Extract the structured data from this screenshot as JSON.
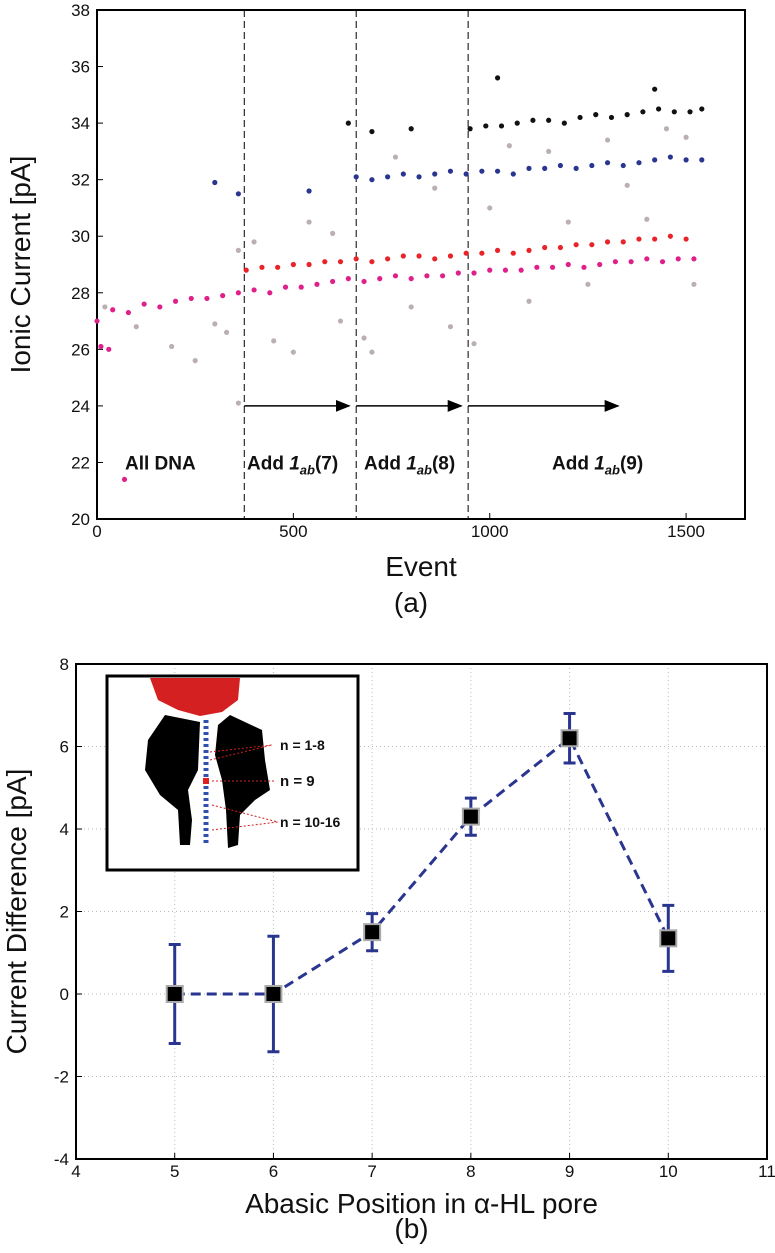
{
  "chart_data": [
    {
      "type": "scatter",
      "panel_label": "(a)",
      "x_label": "Event",
      "y_label": "Ionic Current [pA]",
      "xlim": [
        0,
        1650
      ],
      "xticks": [
        0,
        500,
        1000,
        1500
      ],
      "ylim": [
        20,
        38
      ],
      "yticks": [
        20,
        22,
        24,
        26,
        28,
        30,
        32,
        34,
        36,
        38
      ],
      "event_boundaries": [
        375,
        660,
        945
      ],
      "annotations": [
        {
          "text": "All DNA"
        },
        {
          "prefix": "Add ",
          "compound": "1",
          "subscript": "ab",
          "suffix": "(7)"
        },
        {
          "prefix": "Add ",
          "compound": "1",
          "subscript": "ab",
          "suffix": "(8)"
        },
        {
          "prefix": "Add ",
          "compound": "1",
          "subscript": "ab",
          "suffix": "(9)"
        }
      ],
      "series": [
        {
          "color": "#bbb0b0",
          "x": [
            20,
            100,
            190,
            250,
            300,
            330,
            360,
            360,
            400,
            450,
            500,
            540,
            600,
            620,
            680,
            700,
            760,
            800,
            860,
            900,
            960,
            1000,
            1050,
            1100,
            1150,
            1200,
            1250,
            1300,
            1350,
            1400,
            1450,
            1500,
            1520
          ],
          "values": [
            27.5,
            26.8,
            26.1,
            25.6,
            26.9,
            26.6,
            29.5,
            24.1,
            29.8,
            26.3,
            25.9,
            30.5,
            30.1,
            27.0,
            26.4,
            25.9,
            32.8,
            27.5,
            31.7,
            26.8,
            26.2,
            31.0,
            33.2,
            27.7,
            33.0,
            30.5,
            28.3,
            33.4,
            31.8,
            30.6,
            33.8,
            33.5,
            28.3
          ]
        },
        {
          "color": "#e0208a",
          "x": [
            0,
            40,
            80,
            120,
            160,
            200,
            240,
            280,
            320,
            360,
            400,
            440,
            480,
            520,
            560,
            600,
            640,
            680,
            720,
            760,
            800,
            840,
            880,
            920,
            960,
            1000,
            1040,
            1080,
            1120,
            1160,
            1200,
            1240,
            1280,
            1320,
            1360,
            1400,
            1440,
            1480,
            1520,
            70,
            10,
            30
          ],
          "values": [
            27.0,
            27.4,
            27.3,
            27.6,
            27.5,
            27.7,
            27.8,
            27.8,
            27.9,
            28.0,
            28.1,
            28.0,
            28.2,
            28.2,
            28.3,
            28.4,
            28.5,
            28.4,
            28.5,
            28.6,
            28.5,
            28.6,
            28.6,
            28.7,
            28.7,
            28.8,
            28.8,
            28.8,
            28.9,
            28.9,
            29.0,
            28.9,
            29.0,
            29.1,
            29.1,
            29.2,
            29.1,
            29.2,
            29.2,
            21.4,
            26.1,
            26.0
          ]
        },
        {
          "color": "#e8242a",
          "x": [
            380,
            420,
            460,
            500,
            540,
            580,
            620,
            660,
            700,
            740,
            780,
            820,
            860,
            900,
            940,
            980,
            1020,
            1060,
            1100,
            1140,
            1180,
            1220,
            1260,
            1300,
            1340,
            1380,
            1420,
            1460,
            1500
          ],
          "values": [
            28.8,
            28.9,
            28.9,
            29.0,
            29.0,
            29.1,
            29.1,
            29.2,
            29.1,
            29.2,
            29.3,
            29.3,
            29.2,
            29.3,
            29.4,
            29.4,
            29.5,
            29.4,
            29.5,
            29.6,
            29.6,
            29.7,
            29.7,
            29.8,
            29.8,
            29.9,
            29.9,
            30.0,
            29.9
          ]
        },
        {
          "color": "#2a3590",
          "x": [
            660,
            700,
            740,
            780,
            820,
            860,
            900,
            940,
            980,
            1020,
            1060,
            1100,
            1140,
            1180,
            1220,
            1260,
            1300,
            1340,
            1380,
            1420,
            1460,
            1500,
            1540,
            300,
            360,
            540
          ],
          "values": [
            32.1,
            32.0,
            32.1,
            32.2,
            32.1,
            32.2,
            32.3,
            32.2,
            32.3,
            32.3,
            32.2,
            32.4,
            32.4,
            32.5,
            32.4,
            32.5,
            32.6,
            32.5,
            32.6,
            32.7,
            32.8,
            32.7,
            32.7,
            31.9,
            31.5,
            31.6
          ]
        },
        {
          "color": "#111111",
          "x": [
            950,
            990,
            1030,
            1070,
            1110,
            1150,
            1190,
            1230,
            1270,
            1310,
            1350,
            1390,
            1430,
            1470,
            1510,
            1540,
            640,
            700,
            800,
            1020,
            1420
          ],
          "values": [
            33.8,
            33.9,
            33.9,
            34.0,
            34.1,
            34.1,
            34.0,
            34.2,
            34.3,
            34.2,
            34.3,
            34.4,
            34.5,
            34.4,
            34.4,
            34.5,
            34.0,
            33.7,
            33.8,
            35.6,
            35.2
          ]
        }
      ]
    },
    {
      "type": "errorline",
      "panel_label": "(b)",
      "x_label": "Abasic Position in α-HL pore",
      "y_label": "Current Difference [pA]",
      "xlim": [
        4,
        11
      ],
      "xticks": [
        4,
        5,
        6,
        7,
        8,
        9,
        10,
        11
      ],
      "ylim": [
        -4,
        8
      ],
      "yticks": [
        -4,
        -2,
        0,
        2,
        4,
        6,
        8
      ],
      "grid": true,
      "x": [
        5,
        6,
        7,
        8,
        9,
        10
      ],
      "values": [
        0,
        0,
        1.5,
        4.3,
        6.2,
        1.35
      ],
      "errors": [
        1.2,
        1.4,
        0.45,
        0.45,
        0.6,
        0.8
      ],
      "color": "#2a3590",
      "inset": {
        "labels": [
          "n = 1-8",
          "n = 9",
          "n = 10-16"
        ]
      }
    }
  ]
}
